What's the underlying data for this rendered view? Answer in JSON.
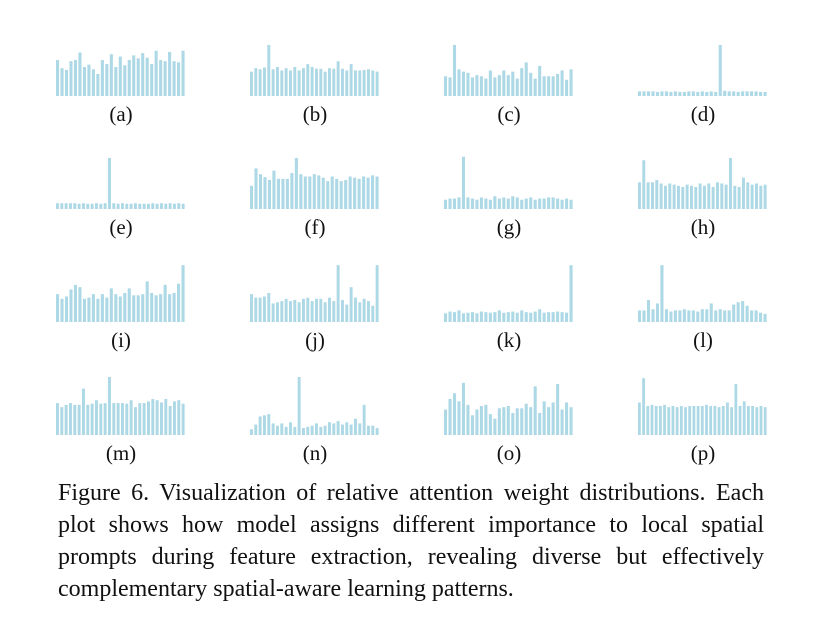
{
  "figure": {
    "caption": "Figure 6.  Visualization of relative attention weight distributions. Each plot shows how model assigns different importance to local spatial prompts during feature extraction, revealing diverse but effectively complementary spatial-aware learning patterns.",
    "bar_color": "#add8e6"
  },
  "chart_data": [
    {
      "type": "bar",
      "label": "(a)",
      "values": [
        0.62,
        0.48,
        0.45,
        0.6,
        0.62,
        0.75,
        0.5,
        0.54,
        0.46,
        0.38,
        0.62,
        0.55,
        0.72,
        0.5,
        0.68,
        0.53,
        0.62,
        0.7,
        0.65,
        0.74,
        0.66,
        0.55,
        0.78,
        0.62,
        0.6,
        0.76,
        0.6,
        0.58,
        0.78
      ]
    },
    {
      "type": "bar",
      "label": "(b)",
      "values": [
        0.42,
        0.48,
        0.46,
        0.49,
        0.88,
        0.46,
        0.5,
        0.44,
        0.48,
        0.44,
        0.5,
        0.44,
        0.48,
        0.55,
        0.5,
        0.47,
        0.47,
        0.42,
        0.48,
        0.47,
        0.6,
        0.47,
        0.44,
        0.55,
        0.44,
        0.44,
        0.45,
        0.46,
        0.44,
        0.42
      ]
    },
    {
      "type": "bar",
      "label": "(c)",
      "values": [
        0.34,
        0.32,
        0.88,
        0.46,
        0.42,
        0.4,
        0.32,
        0.36,
        0.34,
        0.3,
        0.44,
        0.32,
        0.36,
        0.44,
        0.36,
        0.42,
        0.3,
        0.48,
        0.58,
        0.4,
        0.3,
        0.52,
        0.34,
        0.34,
        0.34,
        0.38,
        0.44,
        0.28,
        0.46
      ]
    },
    {
      "type": "bar",
      "label": "(d)",
      "values": [
        0.08,
        0.08,
        0.08,
        0.08,
        0.07,
        0.08,
        0.08,
        0.07,
        0.08,
        0.07,
        0.07,
        0.08,
        0.08,
        0.07,
        0.08,
        0.07,
        0.08,
        0.07,
        0.88,
        0.09,
        0.08,
        0.08,
        0.07,
        0.08,
        0.08,
        0.08,
        0.08,
        0.07,
        0.07
      ]
    },
    {
      "type": "bar",
      "label": "(e)",
      "values": [
        0.1,
        0.1,
        0.1,
        0.1,
        0.1,
        0.09,
        0.1,
        0.09,
        0.09,
        0.1,
        0.09,
        0.1,
        0.88,
        0.1,
        0.09,
        0.1,
        0.09,
        0.09,
        0.1,
        0.09,
        0.09,
        0.09,
        0.1,
        0.09,
        0.1,
        0.09,
        0.1,
        0.09,
        0.1,
        0.09
      ]
    },
    {
      "type": "bar",
      "label": "(f)",
      "values": [
        0.4,
        0.7,
        0.6,
        0.55,
        0.5,
        0.66,
        0.52,
        0.52,
        0.52,
        0.62,
        0.88,
        0.6,
        0.56,
        0.56,
        0.6,
        0.58,
        0.54,
        0.48,
        0.56,
        0.52,
        0.48,
        0.5,
        0.56,
        0.54,
        0.52,
        0.56,
        0.54,
        0.58,
        0.56
      ]
    },
    {
      "type": "bar",
      "label": "(g)",
      "values": [
        0.16,
        0.18,
        0.18,
        0.2,
        0.9,
        0.2,
        0.18,
        0.16,
        0.2,
        0.18,
        0.16,
        0.22,
        0.18,
        0.2,
        0.18,
        0.22,
        0.2,
        0.16,
        0.18,
        0.2,
        0.16,
        0.18,
        0.18,
        0.2,
        0.2,
        0.18,
        0.16,
        0.18,
        0.16
      ]
    },
    {
      "type": "bar",
      "label": "(h)",
      "values": [
        0.46,
        0.84,
        0.46,
        0.46,
        0.5,
        0.44,
        0.4,
        0.44,
        0.42,
        0.4,
        0.38,
        0.42,
        0.4,
        0.38,
        0.44,
        0.4,
        0.44,
        0.38,
        0.46,
        0.44,
        0.42,
        0.88,
        0.4,
        0.38,
        0.54,
        0.46,
        0.42,
        0.44,
        0.4,
        0.42
      ]
    },
    {
      "type": "bar",
      "label": "(i)",
      "values": [
        0.48,
        0.4,
        0.44,
        0.56,
        0.64,
        0.6,
        0.4,
        0.42,
        0.48,
        0.4,
        0.48,
        0.42,
        0.58,
        0.48,
        0.44,
        0.5,
        0.58,
        0.46,
        0.46,
        0.48,
        0.7,
        0.5,
        0.46,
        0.48,
        0.64,
        0.48,
        0.5,
        0.66,
        0.98
      ]
    },
    {
      "type": "bar",
      "label": "(j)",
      "values": [
        0.48,
        0.42,
        0.42,
        0.44,
        0.5,
        0.32,
        0.34,
        0.36,
        0.4,
        0.36,
        0.38,
        0.34,
        0.4,
        0.42,
        0.36,
        0.4,
        0.4,
        0.34,
        0.42,
        0.36,
        0.98,
        0.38,
        0.3,
        0.6,
        0.42,
        0.34,
        0.4,
        0.36,
        0.28,
        0.98
      ]
    },
    {
      "type": "bar",
      "label": "(k)",
      "values": [
        0.15,
        0.18,
        0.17,
        0.2,
        0.15,
        0.16,
        0.17,
        0.15,
        0.18,
        0.17,
        0.16,
        0.17,
        0.2,
        0.16,
        0.17,
        0.18,
        0.16,
        0.2,
        0.17,
        0.16,
        0.18,
        0.22,
        0.16,
        0.17,
        0.17,
        0.18,
        0.17,
        0.16,
        0.98
      ]
    },
    {
      "type": "bar",
      "label": "(l)",
      "values": [
        0.2,
        0.2,
        0.38,
        0.22,
        0.32,
        0.98,
        0.22,
        0.18,
        0.2,
        0.2,
        0.22,
        0.2,
        0.2,
        0.18,
        0.22,
        0.22,
        0.32,
        0.2,
        0.22,
        0.2,
        0.2,
        0.3,
        0.34,
        0.36,
        0.28,
        0.2,
        0.2,
        0.16,
        0.14
      ]
    },
    {
      "type": "bar",
      "label": "(m)",
      "values": [
        0.55,
        0.48,
        0.52,
        0.55,
        0.52,
        0.52,
        0.8,
        0.52,
        0.54,
        0.6,
        0.54,
        0.55,
        1.0,
        0.55,
        0.55,
        0.55,
        0.54,
        0.6,
        0.48,
        0.55,
        0.55,
        0.58,
        0.62,
        0.6,
        0.56,
        0.62,
        0.5,
        0.58,
        0.6,
        0.54
      ]
    },
    {
      "type": "bar",
      "label": "(n)",
      "values": [
        0.1,
        0.18,
        0.32,
        0.34,
        0.36,
        0.2,
        0.16,
        0.2,
        0.14,
        0.22,
        0.14,
        1.0,
        0.12,
        0.14,
        0.16,
        0.2,
        0.14,
        0.16,
        0.22,
        0.2,
        0.24,
        0.18,
        0.22,
        0.18,
        0.28,
        0.2,
        0.52,
        0.16,
        0.16,
        0.12
      ]
    },
    {
      "type": "bar",
      "label": "(o)",
      "values": [
        0.44,
        0.62,
        0.72,
        0.58,
        0.9,
        0.52,
        0.34,
        0.44,
        0.5,
        0.52,
        0.36,
        0.28,
        0.46,
        0.48,
        0.5,
        0.38,
        0.46,
        0.46,
        0.54,
        0.48,
        0.84,
        0.38,
        0.58,
        0.48,
        0.56,
        0.88,
        0.44,
        0.56,
        0.48
      ]
    },
    {
      "type": "bar",
      "label": "(p)",
      "values": [
        0.56,
        0.98,
        0.5,
        0.52,
        0.5,
        0.5,
        0.52,
        0.48,
        0.5,
        0.48,
        0.5,
        0.48,
        0.5,
        0.5,
        0.5,
        0.5,
        0.52,
        0.5,
        0.5,
        0.48,
        0.5,
        0.56,
        0.48,
        0.88,
        0.5,
        0.58,
        0.5,
        0.5,
        0.48,
        0.5,
        0.48
      ]
    }
  ]
}
